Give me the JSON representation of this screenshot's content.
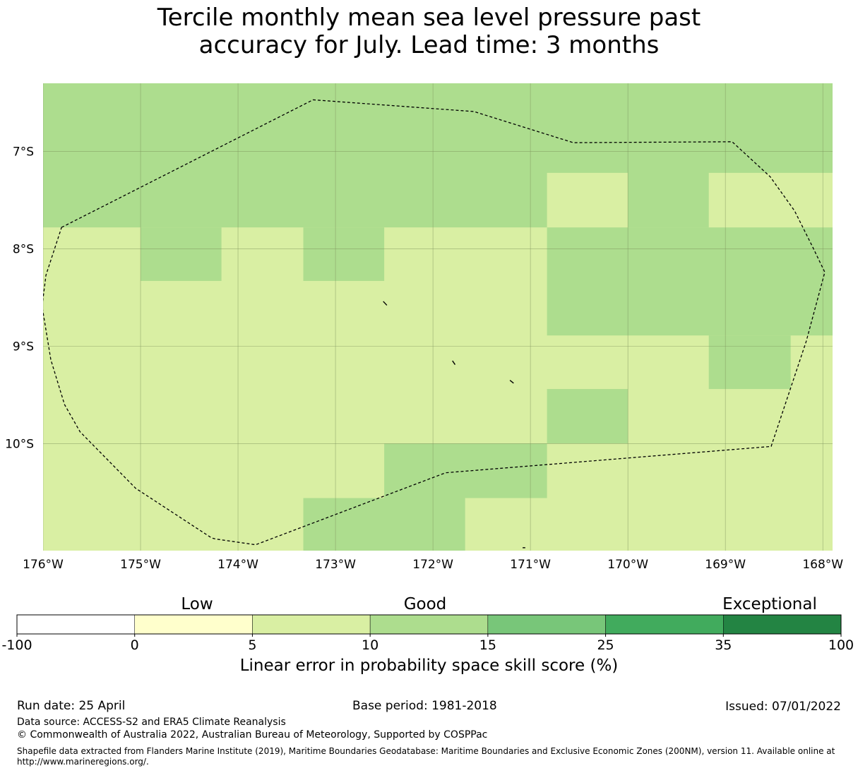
{
  "title": {
    "line1": "Tercile monthly mean sea level pressure past",
    "line2": "accuracy for July. Lead time: 3 months"
  },
  "map": {
    "lon_range": [
      -176.0,
      -167.9
    ],
    "lat_range": [
      -11.1,
      -6.3
    ],
    "lon_ticks": [
      {
        "value": -176,
        "label": "176°W"
      },
      {
        "value": -175,
        "label": "175°W"
      },
      {
        "value": -174,
        "label": "174°W"
      },
      {
        "value": -173,
        "label": "173°W"
      },
      {
        "value": -172,
        "label": "172°W"
      },
      {
        "value": -171,
        "label": "171°W"
      },
      {
        "value": -170,
        "label": "170°W"
      },
      {
        "value": -169,
        "label": "169°W"
      },
      {
        "value": -168,
        "label": "168°W"
      }
    ],
    "lat_ticks": [
      {
        "value": -7,
        "label": "7°S"
      },
      {
        "value": -8,
        "label": "8°S"
      },
      {
        "value": -9,
        "label": "9°S"
      },
      {
        "value": -10,
        "label": "10°S"
      }
    ],
    "grid_lines": true,
    "background_color": "#d9efa3",
    "cells_10_to_15": [
      {
        "lon": [
          -176.0,
          -167.9
        ],
        "lat": [
          -7.78,
          -6.3
        ]
      },
      {
        "lon": [
          -175.0,
          -174.17
        ],
        "lat": [
          -8.33,
          -7.78
        ]
      },
      {
        "lon": [
          -173.33,
          -172.5
        ],
        "lat": [
          -8.33,
          -7.78
        ]
      },
      {
        "lon": [
          -170.0,
          -169.17
        ],
        "lat": [
          -7.78,
          -7.22
        ]
      },
      {
        "lon": [
          -170.83,
          -167.9
        ],
        "lat": [
          -8.89,
          -7.78
        ]
      },
      {
        "lon": [
          -169.17,
          -168.33
        ],
        "lat": [
          -9.44,
          -8.89
        ]
      },
      {
        "lon": [
          -170.83,
          -170.0
        ],
        "lat": [
          -10.0,
          -9.44
        ]
      },
      {
        "lon": [
          -172.5,
          -170.83
        ],
        "lat": [
          -10.56,
          -10.0
        ]
      },
      {
        "lon": [
          -173.33,
          -171.67
        ],
        "lat": [
          -11.1,
          -10.56
        ]
      }
    ],
    "cells_5_to_10": [
      {
        "lon": [
          -170.83,
          -170.0
        ],
        "lat": [
          -7.78,
          -7.22
        ]
      },
      {
        "lon": [
          -169.17,
          -167.9
        ],
        "lat": [
          -7.78,
          -7.22
        ]
      }
    ],
    "boundary": [
      [
        -175.81,
        -7.78
      ],
      [
        -173.23,
        -6.47
      ],
      [
        -171.58,
        -6.59
      ],
      [
        -170.56,
        -6.91
      ],
      [
        -168.93,
        -6.9
      ],
      [
        -168.54,
        -7.26
      ],
      [
        -168.29,
        -7.61
      ],
      [
        -168.1,
        -7.99
      ],
      [
        -167.98,
        -8.24
      ],
      [
        -168.17,
        -8.95
      ],
      [
        -168.53,
        -10.03
      ],
      [
        -171.87,
        -10.3
      ],
      [
        -173.82,
        -11.04
      ],
      [
        -174.23,
        -10.98
      ],
      [
        -174.27,
        -10.97
      ],
      [
        -175.05,
        -10.46
      ],
      [
        -175.62,
        -9.88
      ],
      [
        -175.78,
        -9.6
      ],
      [
        -175.92,
        -9.14
      ],
      [
        -176.01,
        -8.59
      ],
      [
        -175.97,
        -8.27
      ]
    ],
    "islands": [
      {
        "lon": [
          -172.51,
          -172.48
        ],
        "lat": [
          -8.54,
          -8.58
        ]
      },
      {
        "lon": [
          -171.8,
          -171.78
        ],
        "lat": [
          -9.15,
          -9.19
        ]
      },
      {
        "lon": [
          -171.21,
          -171.18
        ],
        "lat": [
          -9.35,
          -9.38
        ]
      },
      {
        "lon": [
          -171.08,
          -171.06
        ],
        "lat": [
          -11.07,
          -11.07
        ]
      }
    ]
  },
  "colorbar": {
    "categories": [
      {
        "label": "Low",
        "at": 0
      },
      {
        "label": "Good",
        "at": 10
      },
      {
        "label": "Exceptional",
        "at": 67.5
      }
    ],
    "bins": [
      {
        "from": -100,
        "to": 0,
        "color": "#ffffff"
      },
      {
        "from": 0,
        "to": 5,
        "color": "#ffffcc"
      },
      {
        "from": 5,
        "to": 10,
        "color": "#d9efa3"
      },
      {
        "from": 10,
        "to": 15,
        "color": "#addd8e"
      },
      {
        "from": 15,
        "to": 25,
        "color": "#78c679"
      },
      {
        "from": 25,
        "to": 35,
        "color": "#41ab5d"
      },
      {
        "from": 35,
        "to": 100,
        "color": "#238443"
      }
    ],
    "ticks": [
      "-100",
      "0",
      "5",
      "10",
      "15",
      "25",
      "35",
      "100"
    ],
    "label": "Linear error in probability space skill score (%)"
  },
  "footer": {
    "run_date": "Run date: 25 April",
    "base_period": "Base period: 1981-2018",
    "issued": "Issued: 07/01/2022",
    "data_source": "Data source: ACCESS-S2 and ERA5 Climate Reanalysis",
    "copyright": "© Commonwealth of Australia 2022, Australian Bureau of Meteorology, Supported by COSPPac",
    "shapefile_note": "Shapefile data extracted from Flanders Marine Institute (2019), Maritime Boundaries Geodatabase: Maritime Boundaries and Exclusive Economic Zones (200NM), version 11. Available online at http://www.marineregions.org/."
  }
}
